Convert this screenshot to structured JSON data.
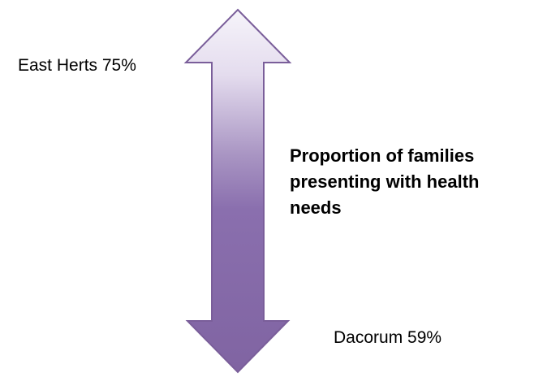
{
  "diagram": {
    "top_label": "East Herts 75%",
    "bottom_label": "Dacorum 59%",
    "center_label_lines": [
      "Proportion of families",
      "presenting with health",
      "needs"
    ],
    "colors": {
      "arrow_light": "#f2eff8",
      "arrow_dark": "#8064a2",
      "arrow_outline": "#7a5e9a"
    }
  }
}
